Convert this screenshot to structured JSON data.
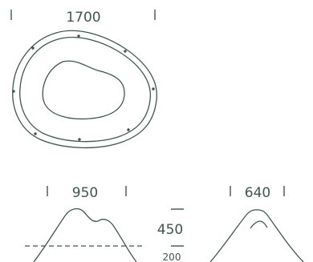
{
  "top_view": {
    "width_label": "1700"
  },
  "front_view": {
    "width_label": "950",
    "height_label": "450",
    "depth_label": "200"
  },
  "side_view": {
    "width_label": "640"
  },
  "colors": {
    "ink": "#3f5650",
    "background": "#ffffff"
  }
}
